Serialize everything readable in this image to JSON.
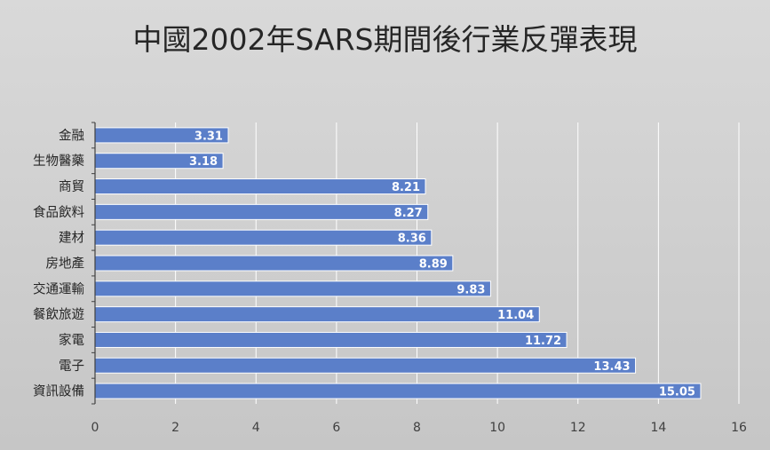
{
  "chart_data": {
    "type": "bar",
    "orientation": "horizontal",
    "title": "中國2002年SARS期間後行業反彈表現",
    "categories": [
      "金融",
      "生物醫藥",
      "商貿",
      "食品飲料",
      "建材",
      "房地產",
      "交通運輸",
      "餐飲旅遊",
      "家電",
      "電子",
      "資訊設備"
    ],
    "values": [
      3.31,
      3.18,
      8.21,
      8.27,
      8.36,
      8.89,
      9.83,
      11.04,
      11.72,
      13.43,
      15.05
    ],
    "value_labels": [
      "3.31",
      "3.18",
      "8.21",
      "8.27",
      "8.36",
      "8.89",
      "9.83",
      "11.04",
      "11.72",
      "13.43",
      "15.05"
    ],
    "xlim": [
      0,
      16
    ],
    "x_ticks": [
      "0",
      "2",
      "4",
      "6",
      "8",
      "10",
      "12",
      "14",
      "16"
    ],
    "grid": "vertical",
    "legend": "none",
    "bar_color": "#5b7fc9",
    "bar_edge_color": "#ffffff",
    "grid_color": "#ffffff",
    "background_top": "#d9d9d9",
    "background_bottom": "#c6c6c6"
  }
}
